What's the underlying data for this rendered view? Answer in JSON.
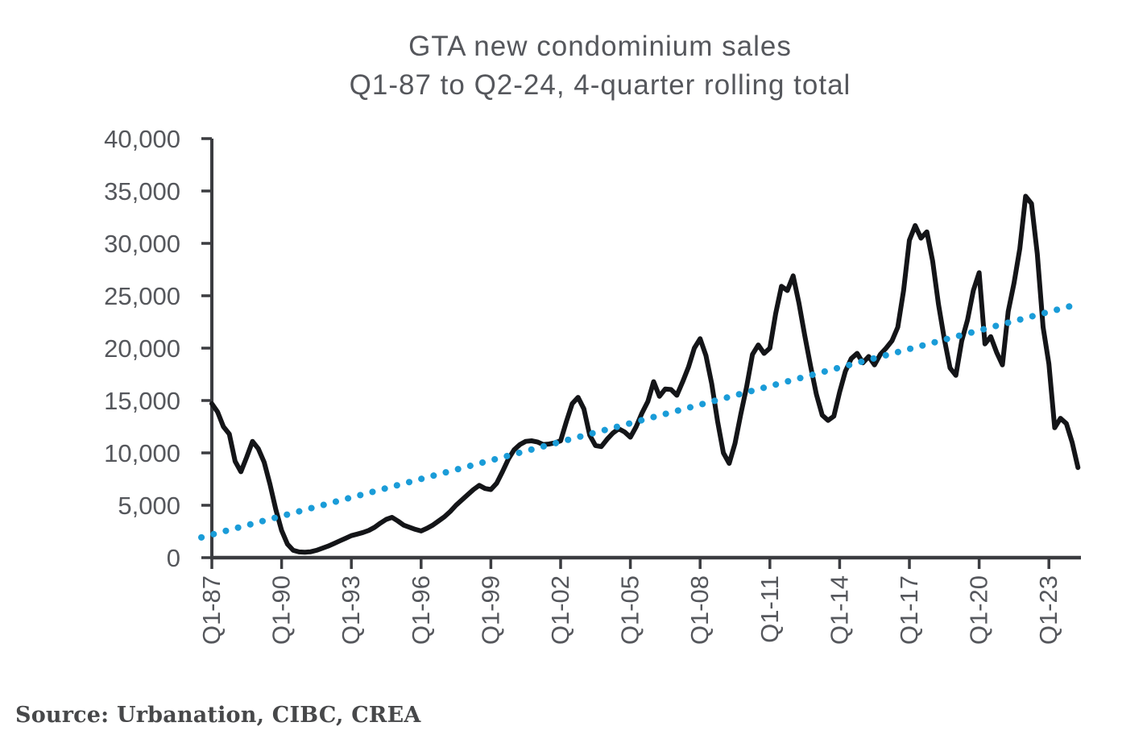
{
  "chart_data": {
    "type": "line",
    "title": "GTA new condominium sales",
    "subtitle": "Q1-87 to Q2-24, 4-quarter rolling total",
    "source": "Source: Urbanation, CIBC, CREA",
    "frequency": "quarterly",
    "x_start": "Q1-87",
    "x_end": "Q2-24",
    "ylim": [
      0,
      40000
    ],
    "grid": false,
    "legend": "none",
    "yticks": [
      {
        "value": 0,
        "label": "0"
      },
      {
        "value": 5000,
        "label": "5,000"
      },
      {
        "value": 10000,
        "label": "10,000"
      },
      {
        "value": 15000,
        "label": "15,000"
      },
      {
        "value": 20000,
        "label": "20,000"
      },
      {
        "value": 25000,
        "label": "25,000"
      },
      {
        "value": 30000,
        "label": "30,000"
      },
      {
        "value": 35000,
        "label": "35,000"
      },
      {
        "value": 40000,
        "label": "40,000"
      }
    ],
    "xticks": [
      {
        "q": 0,
        "label": "Q1-87"
      },
      {
        "q": 12,
        "label": "Q1-90"
      },
      {
        "q": 24,
        "label": "Q1-93"
      },
      {
        "q": 36,
        "label": "Q1-96"
      },
      {
        "q": 48,
        "label": "Q1-99"
      },
      {
        "q": 60,
        "label": "Q1-02"
      },
      {
        "q": 72,
        "label": "Q1-05"
      },
      {
        "q": 84,
        "label": "Q1-08"
      },
      {
        "q": 96,
        "label": "Q1-11"
      },
      {
        "q": 108,
        "label": "Q1-14"
      },
      {
        "q": 120,
        "label": "Q1-17"
      },
      {
        "q": 132,
        "label": "Q1-20"
      },
      {
        "q": 144,
        "label": "Q1-23"
      }
    ],
    "series": [
      {
        "name": "GTA new condominium sales, 4-quarter rolling total",
        "color": "#141518",
        "start_quarter": "Q1-87",
        "values": [
          14700,
          13900,
          12500,
          11800,
          9200,
          8200,
          9600,
          11100,
          10400,
          9100,
          7000,
          4600,
          2600,
          1300,
          700,
          550,
          520,
          560,
          700,
          900,
          1100,
          1350,
          1600,
          1850,
          2100,
          2250,
          2400,
          2600,
          2900,
          3300,
          3650,
          3850,
          3500,
          3100,
          2900,
          2700,
          2550,
          2800,
          3100,
          3500,
          3900,
          4400,
          5000,
          5500,
          6000,
          6500,
          6900,
          6600,
          6500,
          7100,
          8200,
          9400,
          10300,
          10800,
          11100,
          11150,
          11050,
          10800,
          10850,
          10950,
          11150,
          13000,
          14700,
          15300,
          14200,
          11700,
          10700,
          10600,
          11300,
          11900,
          12300,
          12000,
          11500,
          12500,
          13800,
          14900,
          16800,
          15400,
          16100,
          16050,
          15500,
          16800,
          18200,
          20000,
          20900,
          19300,
          16600,
          13000,
          10000,
          9000,
          10900,
          13700,
          16300,
          19400,
          20300,
          19500,
          20000,
          23300,
          25900,
          25500,
          26900,
          24300,
          21200,
          18300,
          15600,
          13600,
          13100,
          13500,
          15800,
          17800,
          19000,
          19500,
          18600,
          19200,
          18400,
          19400,
          20000,
          20700,
          22000,
          25500,
          30300,
          31700,
          30500,
          31100,
          28300,
          24200,
          20900,
          18100,
          17400,
          20700,
          22700,
          25500,
          27200,
          20400,
          21100,
          19600,
          18400,
          23500,
          26200,
          29500,
          34500,
          33800,
          29000,
          22000,
          18500,
          12400,
          13300,
          12800,
          11000,
          8600
        ]
      }
    ],
    "trendline": {
      "name": "Linear trend",
      "style": "dotted",
      "color": "#1a9cd8",
      "start_value": 2200,
      "end_value": 24200
    },
    "axis_color": "#3b3c40",
    "label_color": "#55575c"
  }
}
